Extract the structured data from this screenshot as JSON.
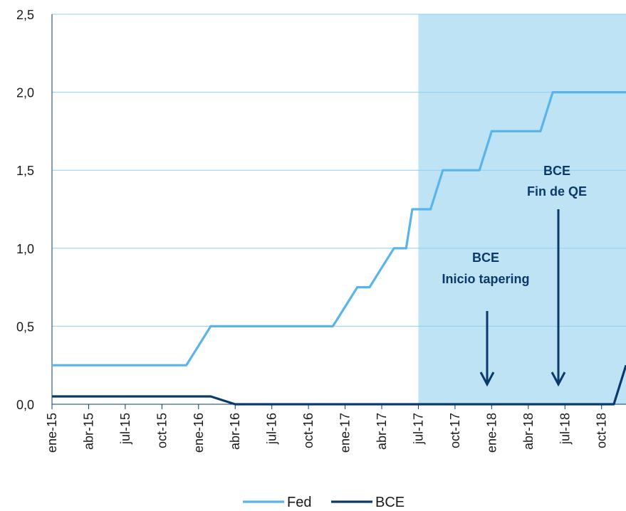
{
  "chart_data": {
    "type": "line",
    "x_tick_labels": [
      "ene-15",
      "abr-15",
      "jul-15",
      "oct-15",
      "ene-16",
      "abr-16",
      "jul-16",
      "oct-16",
      "ene-17",
      "abr-17",
      "jul-17",
      "oct-17",
      "ene-18",
      "abr-18",
      "jul-18",
      "oct-18"
    ],
    "y_tick_labels": [
      "0,0",
      "0,5",
      "1,0",
      "1,5",
      "2,0",
      "2,5"
    ],
    "ylim": [
      0,
      2.5
    ],
    "xlim_months": [
      0,
      47
    ],
    "grid": true,
    "legend_position": "bottom-center",
    "shaded_region": {
      "from": "jul-17",
      "to": "dic-18",
      "color": "#bde3f5"
    },
    "series": [
      {
        "name": "Fed",
        "color": "#5ab4ec",
        "points": [
          [
            "ene-15",
            0.25
          ],
          [
            "dic-15",
            0.25
          ],
          [
            "ene-16",
            0.375
          ],
          [
            "feb-16",
            0.5
          ],
          [
            "nov-16",
            0.5
          ],
          [
            "dic-16",
            0.5
          ],
          [
            "ene-17",
            0.625
          ],
          [
            "feb-17",
            0.75
          ],
          [
            "mar-17",
            0.75
          ],
          [
            "abr-17",
            0.875
          ],
          [
            "may-17",
            1.0
          ],
          [
            "jun-17",
            1.0
          ],
          [
            "jun-17b",
            1.25
          ],
          [
            "jul-17",
            1.25
          ],
          [
            "ago-17",
            1.25
          ],
          [
            "sep-17",
            1.5
          ],
          [
            "nov-17",
            1.5
          ],
          [
            "dic-17",
            1.5
          ],
          [
            "ene-18",
            1.75
          ],
          [
            "feb-18",
            1.75
          ],
          [
            "may-18",
            1.75
          ],
          [
            "jun-18",
            2.0
          ],
          [
            "dic-18",
            2.0
          ]
        ]
      },
      {
        "name": "BCE",
        "color": "#0a3a6b",
        "points": [
          [
            "ene-15",
            0.05
          ],
          [
            "feb-16",
            0.05
          ],
          [
            "abr-16",
            0.0
          ],
          [
            "nov-18",
            0.0
          ],
          [
            "dic-18",
            0.25
          ]
        ]
      }
    ],
    "annotations": [
      {
        "line1": "BCE",
        "line2": "Inicio tapering",
        "date": "ene-18"
      },
      {
        "line1": "BCE",
        "line2": "Fin de QE",
        "date": "jul-18"
      }
    ]
  }
}
